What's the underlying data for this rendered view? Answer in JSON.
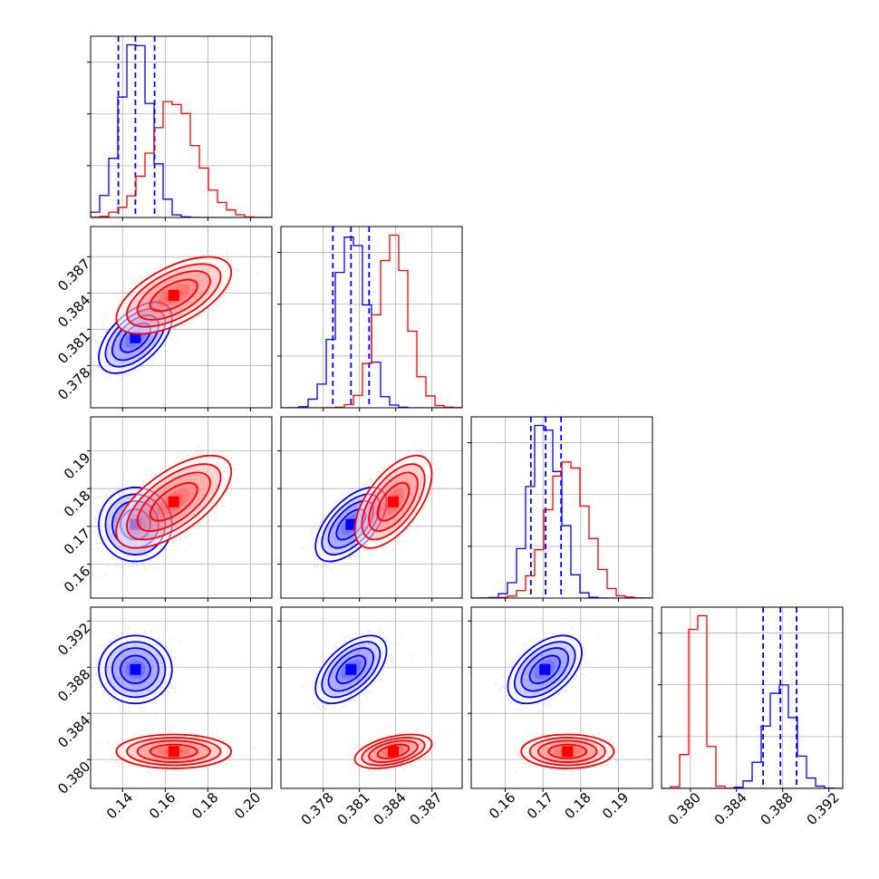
{
  "chart_data": {
    "type": "corner",
    "title": "",
    "parameters": [
      {
        "id": "p1",
        "range": [
          0.125,
          0.21
        ],
        "ticks": [
          0.14,
          0.16,
          0.18,
          0.2
        ],
        "tick_labels": [
          "0.14",
          "0.16",
          "0.18",
          "0.20"
        ]
      },
      {
        "id": "p2",
        "range": [
          0.3745,
          0.3895
        ],
        "ticks": [
          0.378,
          0.381,
          0.384,
          0.387
        ],
        "tick_labels": [
          "0.378",
          "0.381",
          "0.384",
          "0.387"
        ]
      },
      {
        "id": "p3",
        "range": [
          0.151,
          0.199
        ],
        "ticks": [
          0.16,
          0.17,
          0.18,
          0.19
        ],
        "tick_labels": [
          "0.16",
          "0.17",
          "0.18",
          "0.19"
        ]
      },
      {
        "id": "p4",
        "range": [
          0.3775,
          0.3932
        ],
        "ticks": [
          0.38,
          0.384,
          0.388,
          0.392
        ],
        "tick_labels": [
          "0.380",
          "0.384",
          "0.388",
          "0.392"
        ]
      }
    ],
    "series": [
      {
        "name": "blue",
        "color": "#0000ff",
        "mean": [
          0.146,
          0.3803,
          0.1705,
          0.3878
        ],
        "std": [
          0.007,
          0.0012,
          0.004,
          0.0012
        ],
        "corr": [
          [
            0,
            1,
            0.55
          ],
          [
            0,
            2,
            0.0
          ],
          [
            1,
            2,
            0.6
          ],
          [
            0,
            3,
            0.0
          ],
          [
            1,
            3,
            0.55
          ],
          [
            2,
            3,
            0.5
          ]
        ],
        "quantile_lines": [
          [
            0.138,
            0.146,
            0.155
          ],
          [
            0.3788,
            0.3803,
            0.3818
          ],
          [
            0.1668,
            0.1707,
            0.1748
          ],
          [
            0.3863,
            0.3878,
            0.3892
          ]
        ]
      },
      {
        "name": "red",
        "color": "#ff0000",
        "mean": [
          0.164,
          0.3838,
          0.1765,
          0.3807
        ],
        "std": [
          0.011,
          0.0013,
          0.005,
          0.0006
        ],
        "corr": [
          [
            0,
            1,
            0.6
          ],
          [
            0,
            2,
            0.65
          ],
          [
            1,
            2,
            0.6
          ],
          [
            0,
            3,
            0.0
          ],
          [
            1,
            3,
            0.45
          ],
          [
            2,
            3,
            0.0
          ]
        ],
        "quantile_lines": []
      }
    ],
    "x_tick_labels": [
      [
        "0.14",
        "0.16",
        "0.18",
        "0.20"
      ],
      [
        "0.378",
        "0.381",
        "0.384",
        "0.387"
      ],
      [
        "0.16",
        "0.17",
        "0.18",
        "0.19"
      ],
      [
        "0.380",
        "0.384",
        "0.388",
        "0.392"
      ]
    ],
    "y_tick_labels": [
      [
        "0.387",
        "0.384",
        "0.381",
        "0.378"
      ],
      [
        "0.19",
        "0.18",
        "0.17",
        "0.16"
      ],
      [
        "0.392",
        "0.388",
        "0.384",
        "0.380"
      ]
    ],
    "grid": true,
    "legend": "none"
  }
}
